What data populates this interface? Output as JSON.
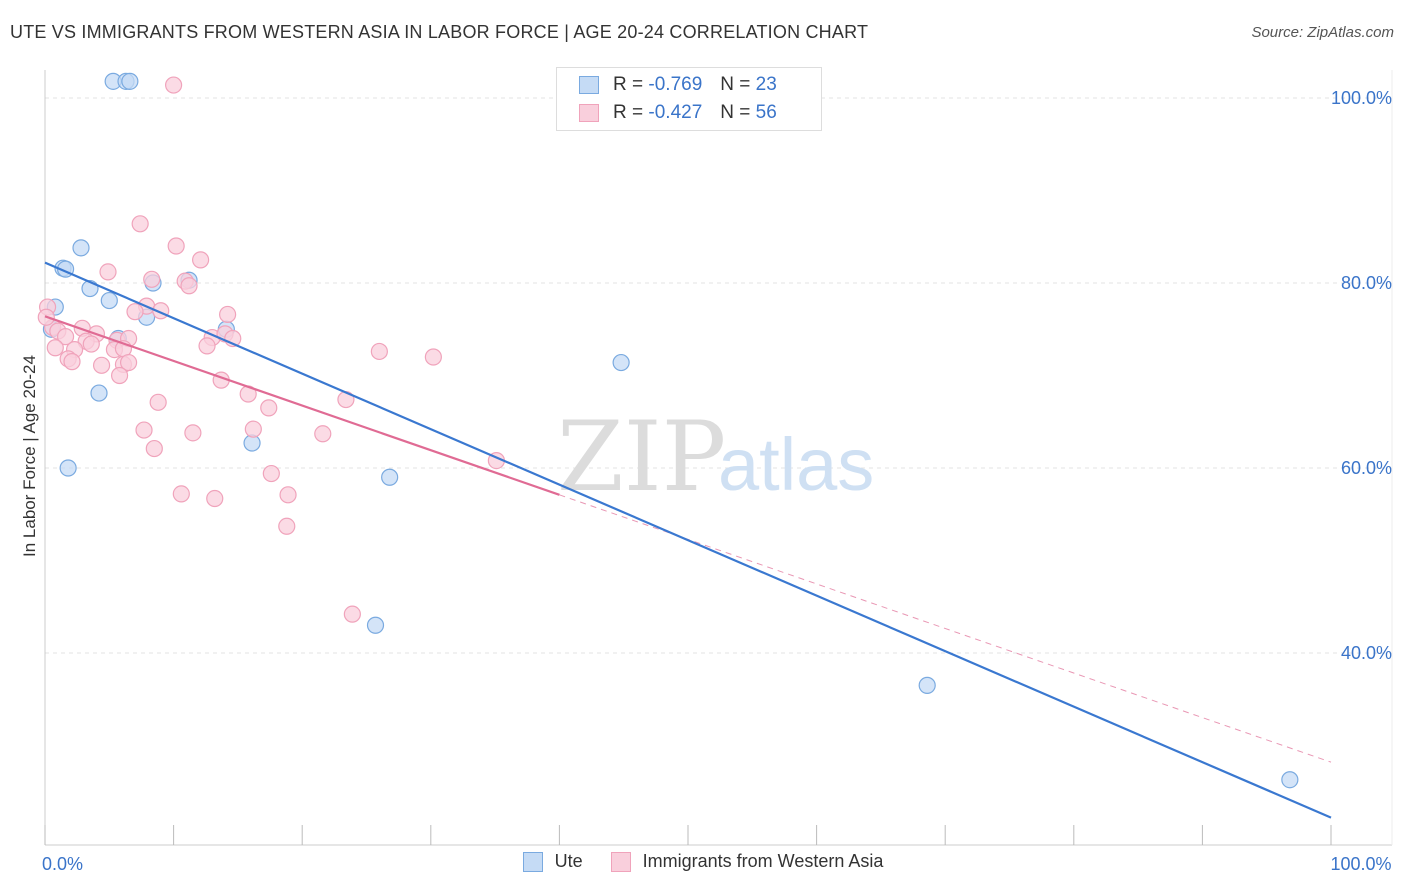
{
  "header": {
    "title": "UTE VS IMMIGRANTS FROM WESTERN ASIA IN LABOR FORCE | AGE 20-24 CORRELATION CHART",
    "source": "Source: ZipAtlas.com"
  },
  "watermark": {
    "part1": "ZIP",
    "part2": "atlas"
  },
  "legend_top": [
    {
      "r_label": "R =",
      "r_value": "-0.769",
      "n_label": "N =",
      "n_value": "23"
    },
    {
      "r_label": "R =",
      "r_value": "-0.427",
      "n_label": "N =",
      "n_value": "56"
    }
  ],
  "legend_bottom": [
    {
      "label": "Ute"
    },
    {
      "label": "Immigrants from Western Asia"
    }
  ],
  "chart_data": {
    "type": "scatter",
    "title": "UTE VS IMMIGRANTS FROM WESTERN ASIA IN LABOR FORCE | AGE 20-24 CORRELATION CHART",
    "xlabel": "",
    "ylabel": "In Labor Force | Age 20-24",
    "xlim": [
      0,
      100
    ],
    "ylim": [
      20,
      103
    ],
    "x_ticks": [
      0,
      10,
      20,
      30,
      40,
      50,
      60,
      70,
      80,
      90,
      100
    ],
    "x_tick_labels": [
      {
        "value": 0,
        "label": "0.0%"
      },
      {
        "value": 100,
        "label": "100.0%"
      }
    ],
    "y_ticks": [
      {
        "value": 100,
        "label": "100.0%"
      },
      {
        "value": 80,
        "label": "80.0%"
      },
      {
        "value": 60,
        "label": "60.0%"
      },
      {
        "value": 40,
        "label": "40.0%"
      }
    ],
    "grid": true,
    "legend_position": "top-center",
    "series": [
      {
        "name": "Ute",
        "color": "#7aaae0",
        "fill": "#c5dbf5",
        "line_color": "#3a78d0",
        "r": -0.769,
        "n": 23,
        "trend": {
          "x": [
            0,
            100
          ],
          "y": [
            82.2,
            22.2
          ]
        },
        "points": [
          [
            5.3,
            101.8
          ],
          [
            6.3,
            101.8
          ],
          [
            6.6,
            101.8
          ],
          [
            1.4,
            81.6
          ],
          [
            2.8,
            83.8
          ],
          [
            1.6,
            81.5
          ],
          [
            3.5,
            79.4
          ],
          [
            5.0,
            78.1
          ],
          [
            8.4,
            80.0
          ],
          [
            11.2,
            80.3
          ],
          [
            0.8,
            77.4
          ],
          [
            0.5,
            75.0
          ],
          [
            7.9,
            76.3
          ],
          [
            14.1,
            75.0
          ],
          [
            5.7,
            74.0
          ],
          [
            4.2,
            68.1
          ],
          [
            1.8,
            60.0
          ],
          [
            16.1,
            62.7
          ],
          [
            26.8,
            59.0
          ],
          [
            44.8,
            71.4
          ],
          [
            25.7,
            43.0
          ],
          [
            68.6,
            36.5
          ],
          [
            96.8,
            26.3
          ]
        ]
      },
      {
        "name": "Immigrants from Western Asia",
        "color": "#f0a3bb",
        "fill": "#f9cfdc",
        "line_color": "#e06b94",
        "r": -0.427,
        "n": 56,
        "trend": {
          "x": [
            0,
            40
          ],
          "y": [
            76.4,
            57.1
          ]
        },
        "trend_dashed": {
          "x": [
            40,
            100
          ],
          "y": [
            57.1,
            28.2
          ]
        },
        "points": [
          [
            10.0,
            101.4
          ],
          [
            7.4,
            86.4
          ],
          [
            10.2,
            84.0
          ],
          [
            12.1,
            82.5
          ],
          [
            4.9,
            81.2
          ],
          [
            8.3,
            80.4
          ],
          [
            10.9,
            80.2
          ],
          [
            11.2,
            79.7
          ],
          [
            0.2,
            77.4
          ],
          [
            7.9,
            77.5
          ],
          [
            7.0,
            76.9
          ],
          [
            9.0,
            77.0
          ],
          [
            14.2,
            76.6
          ],
          [
            0.6,
            75.2
          ],
          [
            1.0,
            74.8
          ],
          [
            2.9,
            75.1
          ],
          [
            4.0,
            74.5
          ],
          [
            13.0,
            74.1
          ],
          [
            14.0,
            74.5
          ],
          [
            14.6,
            74.0
          ],
          [
            1.6,
            74.2
          ],
          [
            3.2,
            73.7
          ],
          [
            3.6,
            73.4
          ],
          [
            5.6,
            73.8
          ],
          [
            6.5,
            74.0
          ],
          [
            12.6,
            73.2
          ],
          [
            0.8,
            73.0
          ],
          [
            2.3,
            72.8
          ],
          [
            5.4,
            72.8
          ],
          [
            6.1,
            72.9
          ],
          [
            1.8,
            71.8
          ],
          [
            2.1,
            71.5
          ],
          [
            4.4,
            71.1
          ],
          [
            6.1,
            71.2
          ],
          [
            6.5,
            71.4
          ],
          [
            5.8,
            70.0
          ],
          [
            26.0,
            72.6
          ],
          [
            30.2,
            72.0
          ],
          [
            13.7,
            69.5
          ],
          [
            15.8,
            68.0
          ],
          [
            23.4,
            67.4
          ],
          [
            8.8,
            67.1
          ],
          [
            17.4,
            66.5
          ],
          [
            7.7,
            64.1
          ],
          [
            11.5,
            63.8
          ],
          [
            16.2,
            64.2
          ],
          [
            21.6,
            63.7
          ],
          [
            8.5,
            62.1
          ],
          [
            35.1,
            60.8
          ],
          [
            17.6,
            59.4
          ],
          [
            18.9,
            57.1
          ],
          [
            10.6,
            57.2
          ],
          [
            13.2,
            56.7
          ],
          [
            18.8,
            53.7
          ],
          [
            23.9,
            44.2
          ],
          [
            0.1,
            76.3
          ]
        ]
      }
    ]
  }
}
